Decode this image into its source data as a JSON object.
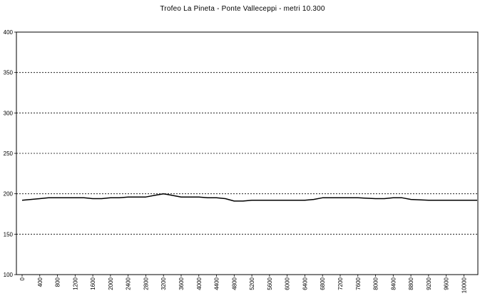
{
  "chart_data": {
    "type": "line",
    "title": "Trofeo La Pineta - Ponte Valleceppi - metri 10.300",
    "xlabel": "",
    "ylabel": "",
    "ylim": [
      100,
      400
    ],
    "yticks": [
      "100",
      "150",
      "200",
      "250",
      "300",
      "350",
      "400"
    ],
    "xlim": [
      0,
      10300
    ],
    "xticks": [
      "0",
      "400",
      "800",
      "1200",
      "1600",
      "2000",
      "2400",
      "2800",
      "3200",
      "3600",
      "4000",
      "4400",
      "4800",
      "5200",
      "5600",
      "6000",
      "6400",
      "6800",
      "7200",
      "7600",
      "8000",
      "8400",
      "8800",
      "9200",
      "9600",
      "10000"
    ],
    "grid": "horizontal dashed",
    "legend": "none",
    "line_color": "#000000",
    "series": [
      {
        "x": [
          0,
          200,
          400,
          600,
          800,
          1000,
          1200,
          1400,
          1600,
          1800,
          2000,
          2200,
          2400,
          2600,
          2800,
          3000,
          3200,
          3300,
          3600,
          3800,
          4000,
          4200,
          4400,
          4600,
          4800,
          5000,
          5200,
          5600,
          6000,
          6400,
          6600,
          6800,
          7000,
          7200,
          7600,
          8000,
          8200,
          8400,
          8600,
          8800,
          9200,
          9600,
          10000,
          10300
        ],
        "y": [
          192,
          193,
          194,
          195,
          195,
          195,
          195,
          195,
          194,
          194,
          195,
          195,
          196,
          196,
          196,
          198,
          200,
          199,
          196,
          196,
          196,
          195,
          195,
          194,
          191,
          191,
          192,
          192,
          192,
          192,
          193,
          195,
          195,
          195,
          195,
          194,
          194,
          195,
          195,
          193,
          192,
          192,
          192,
          192
        ]
      }
    ]
  }
}
